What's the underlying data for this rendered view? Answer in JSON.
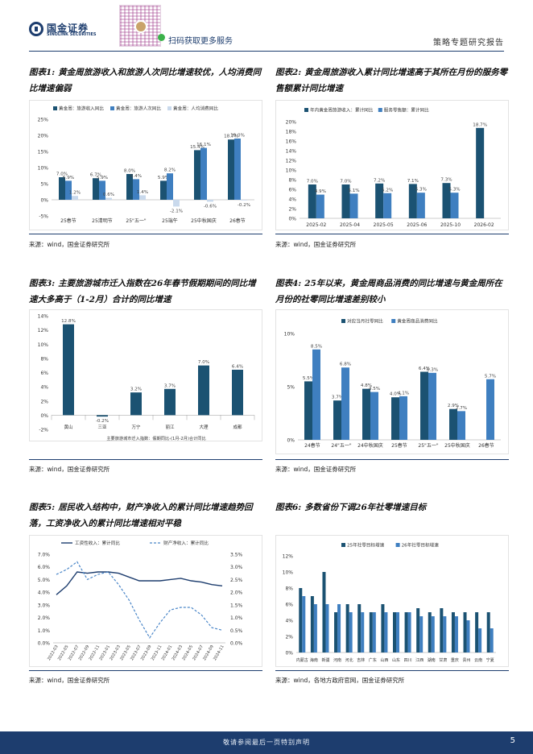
{
  "header": {
    "company_cn": "国金证券",
    "company_en": "SINOLINK SECURITIES",
    "qr_caption": "扫码获取更多服务",
    "report_type": "策略专题研究报告"
  },
  "footer": {
    "disclaimer": "敬请参阅最后一页特别声明",
    "page_number": "5"
  },
  "colors": {
    "navy": "#1d3d6e",
    "mid_blue": "#3f7fc0",
    "light_blue": "#c9d9ec",
    "teal": "#1b5272"
  },
  "charts": [
    {
      "caption_prefix": "图表1:",
      "caption": "黄金周旅游收入和旅游人次同比增速较优，人均消费同比增速偏弱",
      "source": "来源：wind，国金证券研究所"
    },
    {
      "caption_prefix": "图表2:",
      "caption": "黄金周旅游收入累计同比增速高于其所在月份的服务零售额累计同比增速",
      "source": "来源：wind，国金证券研究所"
    },
    {
      "caption_prefix": "图表3:",
      "caption": "主要旅游城市迁入指数在26年春节假期期间的同比增速大多高于（1-2月）合计的同比增速",
      "source": "来源：wind，国金证券研究所"
    },
    {
      "caption_prefix": "图表4:",
      "caption": "25年以来，黄金周商品消费的同比增速与黄金周所在月份的社零同比增速差别较小",
      "source": "来源：wind，国金证券研究所"
    },
    {
      "caption_prefix": "图表5:",
      "caption": "居民收入结构中，财产净收入的累计同比增速趋势回落，工资净收入的累计同比增速相对平稳",
      "source": "来源：wind，国金证券研究所"
    },
    {
      "caption_prefix": "图表6:",
      "caption": "多数省份下调26年社零增速目标",
      "source": "来源：wind，各地方政府官网，国金证券研究所"
    }
  ],
  "chart_data": [
    {
      "type": "bar",
      "categories": [
        "25春节",
        "25清明节",
        "25\"五一\"",
        "25端午",
        "25中秋国庆",
        "26春节"
      ],
      "series": [
        {
          "name": "黄金周：旅游收入同比",
          "values": [
            7.0,
            6.7,
            8.0,
            5.9,
            15.4,
            18.7
          ],
          "labels": [
            "7.0%",
            "6.7%",
            "8.0%",
            "5.9%",
            "15.4%",
            "18.7%"
          ]
        },
        {
          "name": "黄金周：旅游人次同比",
          "values": [
            5.9,
            5.9,
            6.4,
            8.2,
            16.1,
            19.0
          ],
          "labels": [
            "5.9%",
            "5.9%",
            "6.4%",
            "8.2%",
            "16.1%",
            "19.0%"
          ]
        },
        {
          "name": "黄金周：人均消费同比",
          "values": [
            1.2,
            0.6,
            1.4,
            -2.1,
            -0.6,
            -0.2
          ],
          "labels": [
            "1.2%",
            "0.6%",
            "1.4%",
            "-2.1%",
            "-0.6%",
            "-0.2%"
          ]
        }
      ],
      "ylim": [
        -5,
        25
      ],
      "yticks": [
        "-5%",
        "0%",
        "5%",
        "10%",
        "15%",
        "20%",
        "25%"
      ]
    },
    {
      "type": "bar",
      "categories": [
        "2025-02",
        "2025-04",
        "2025-05",
        "2025-06",
        "2025-10",
        "2026-02"
      ],
      "series": [
        {
          "name": "年内黄金周旅游收入：累计同比",
          "values": [
            7.0,
            7.0,
            7.2,
            7.1,
            7.3,
            18.7
          ],
          "labels": [
            "7.0%",
            "7.0%",
            "7.2%",
            "7.1%",
            "7.3%",
            "18.7%"
          ]
        },
        {
          "name": "服务零售额：累计同比",
          "values": [
            4.9,
            5.1,
            5.2,
            5.3,
            5.3,
            null
          ],
          "labels": [
            "4.9%",
            "5.1%",
            "5.2%",
            "5.3%",
            "5.3%",
            ""
          ]
        }
      ],
      "ylim": [
        0,
        20
      ],
      "yticks": [
        "0%",
        "2%",
        "4%",
        "6%",
        "8%",
        "10%",
        "12%",
        "14%",
        "16%",
        "18%",
        "20%"
      ]
    },
    {
      "type": "bar",
      "categories": [
        "黄山",
        "三亚",
        "万宁",
        "丽江",
        "大理",
        "成都"
      ],
      "series": [
        {
          "name": "主要旅游城市迁入指数：假期同比-(1月-2月)合计同比",
          "values": [
            12.8,
            -0.2,
            3.2,
            3.7,
            7.0,
            6.4
          ],
          "labels": [
            "12.8%",
            "-0.2%",
            "3.2%",
            "3.7%",
            "7.0%",
            "6.4%"
          ]
        }
      ],
      "ylim": [
        -2,
        14
      ],
      "yticks": [
        "-2%",
        "0%",
        "2%",
        "4%",
        "6%",
        "8%",
        "10%",
        "12%",
        "14%"
      ]
    },
    {
      "type": "bar",
      "categories": [
        "24春节",
        "24\"五一\"",
        "24中秋国庆",
        "25春节",
        "25\"五一\"",
        "25中秋国庆",
        "26春节"
      ],
      "series": [
        {
          "name": "对应当月社零同比",
          "values": [
            5.5,
            3.7,
            4.8,
            4.0,
            6.4,
            2.9,
            null
          ],
          "labels": [
            "5.5%",
            "3.7%",
            "4.8%",
            "4.0%",
            "6.4%",
            "2.9%",
            ""
          ]
        },
        {
          "name": "黄金周商品消费同比",
          "values": [
            8.5,
            6.8,
            4.5,
            4.1,
            6.3,
            2.7,
            5.7
          ],
          "labels": [
            "8.5%",
            "6.8%",
            "4.5%",
            "4.1%",
            "6.3%",
            "2.7%",
            "5.7%"
          ]
        }
      ],
      "ylim": [
        0,
        10
      ],
      "yticks": [
        "0%",
        "5%",
        "10%"
      ]
    },
    {
      "type": "line",
      "x": [
        "2022-03",
        "2022-05",
        "2022-07",
        "2022-09",
        "2022-11",
        "2023-01",
        "2023-03",
        "2023-05",
        "2023-07",
        "2023-09",
        "2023-11",
        "2024-01",
        "2024-03",
        "2024-05",
        "2024-07",
        "2024-09",
        "2024-11"
      ],
      "series": [
        {
          "name": "工资性收入：累计同比",
          "axis": "left",
          "values": [
            3.8,
            4.5,
            5.6,
            5.5,
            5.6,
            5.6,
            5.5,
            5.2,
            4.9,
            4.9,
            4.9,
            5.0,
            5.1,
            4.9,
            4.8,
            4.6,
            4.5
          ]
        },
        {
          "name": "财产净收入：累计同比",
          "axis": "right",
          "values": [
            2.7,
            2.9,
            3.2,
            2.5,
            2.7,
            2.8,
            2.3,
            1.7,
            0.9,
            0.2,
            0.8,
            1.3,
            1.4,
            1.4,
            1.1,
            0.6,
            0.5
          ]
        }
      ],
      "ylim_left": [
        0,
        7
      ],
      "ylim_right": [
        0,
        3.5
      ],
      "yticks_left": [
        "0.0%",
        "1.0%",
        "2.0%",
        "3.0%",
        "4.0%",
        "5.0%",
        "6.0%",
        "7.0%"
      ],
      "yticks_right": [
        "0.0%",
        "0.5%",
        "1.0%",
        "1.5%",
        "2.0%",
        "2.5%",
        "3.0%",
        "3.5%"
      ]
    },
    {
      "type": "bar",
      "categories": [
        "内蒙古",
        "海南",
        "新疆",
        "河南",
        "河北",
        "吉林",
        "广东",
        "山西",
        "山东",
        "四川",
        "江西",
        "湖南",
        "甘肃",
        "重庆",
        "贵州",
        "云南",
        "宁夏"
      ],
      "series": [
        {
          "name": "25年社零目标增速",
          "values": [
            8.0,
            7.0,
            10.0,
            5.0,
            6.0,
            6.0,
            5.0,
            6.0,
            5.0,
            5.0,
            5.5,
            5.0,
            5.5,
            5.0,
            5.0,
            5.0,
            5.0
          ]
        },
        {
          "name": "26年社零目标增速",
          "values": [
            7.0,
            6.0,
            6.0,
            6.0,
            5.0,
            5.0,
            5.0,
            5.0,
            5.0,
            5.0,
            4.5,
            4.5,
            4.5,
            4.5,
            4.0,
            3.0,
            3.0
          ]
        }
      ],
      "ylim": [
        0,
        12
      ],
      "yticks": [
        "0%",
        "2%",
        "4%",
        "6%",
        "8%",
        "10%",
        "12%"
      ]
    }
  ]
}
